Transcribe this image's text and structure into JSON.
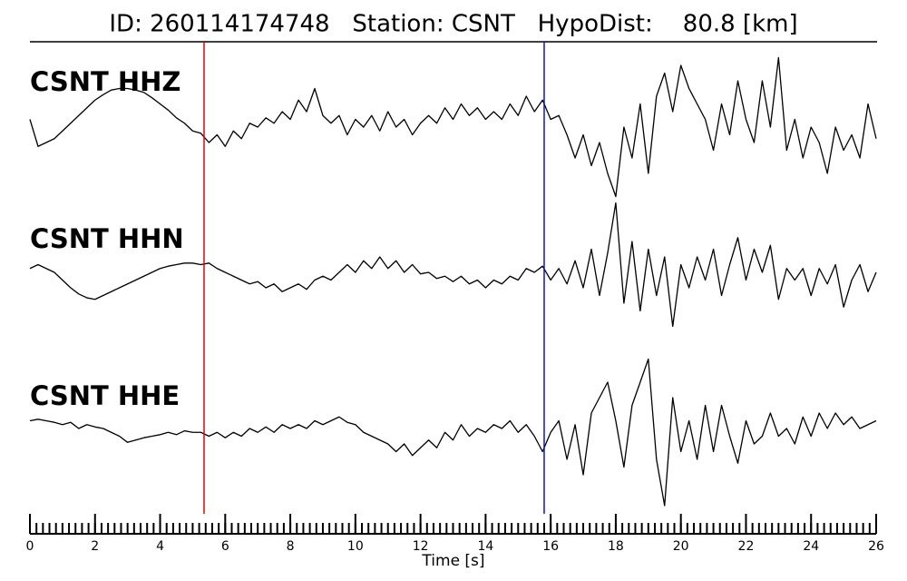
{
  "chart_data": {
    "type": "seismogram",
    "title": "ID: 260114174748   Station: CSNT   HypoDist:    80.8 [km]",
    "xlabel": "Time [s]",
    "xlim": [
      0,
      26
    ],
    "xticks": [
      0,
      2,
      4,
      6,
      8,
      10,
      12,
      14,
      16,
      18,
      20,
      22,
      24,
      26
    ],
    "xminor_step": 0.2,
    "ylim": [
      -1,
      1
    ],
    "label_color": "#4a9a0a",
    "picks": [
      {
        "x": 5.35,
        "color": "#e8000b"
      },
      {
        "x": 15.8,
        "color": "#1010d0"
      }
    ],
    "x": [
      0,
      0.25,
      0.5,
      0.75,
      1,
      1.25,
      1.5,
      1.75,
      2,
      2.25,
      2.5,
      2.75,
      3,
      3.25,
      3.5,
      3.75,
      4,
      4.25,
      4.5,
      4.75,
      5,
      5.25,
      5.5,
      5.75,
      6,
      6.25,
      6.5,
      6.75,
      7,
      7.25,
      7.5,
      7.75,
      8,
      8.25,
      8.5,
      8.75,
      9,
      9.25,
      9.5,
      9.75,
      10,
      10.25,
      10.5,
      10.75,
      11,
      11.25,
      11.5,
      11.75,
      12,
      12.25,
      12.5,
      12.75,
      13,
      13.25,
      13.5,
      13.75,
      14,
      14.25,
      14.5,
      14.75,
      15,
      15.25,
      15.5,
      15.75,
      16,
      16.25,
      16.5,
      16.75,
      17,
      17.25,
      17.5,
      17.75,
      18,
      18.25,
      18.5,
      18.75,
      19,
      19.25,
      19.5,
      19.75,
      20,
      20.25,
      20.5,
      20.75,
      21,
      21.25,
      21.5,
      21.75,
      22,
      22.25,
      22.5,
      22.75,
      23,
      23.25,
      23.5,
      23.75,
      24,
      24.25,
      24.5,
      24.75,
      25,
      25.25,
      25.5,
      25.75,
      26
    ],
    "series": [
      {
        "name": "CSNT HHZ",
        "color": "#000000",
        "values": [
          0.1,
          -0.25,
          -0.2,
          -0.15,
          -0.05,
          0.05,
          0.15,
          0.25,
          0.35,
          0.42,
          0.48,
          0.5,
          0.5,
          0.48,
          0.45,
          0.38,
          0.3,
          0.22,
          0.12,
          0.05,
          -0.05,
          -0.08,
          -0.2,
          -0.1,
          -0.25,
          -0.05,
          -0.15,
          0.05,
          0,
          0.12,
          0.05,
          0.2,
          0.1,
          0.35,
          0.2,
          0.5,
          0.15,
          0.05,
          0.15,
          -0.1,
          0.1,
          0,
          0.15,
          -0.05,
          0.2,
          0,
          0.1,
          -0.1,
          0.05,
          0.15,
          0.05,
          0.25,
          0.1,
          0.3,
          0.15,
          0.25,
          0.1,
          0.2,
          0.1,
          0.3,
          0.15,
          0.4,
          0.2,
          0.35,
          0.1,
          0.15,
          -0.1,
          -0.4,
          -0.1,
          -0.5,
          -0.2,
          -0.6,
          -0.9,
          0,
          -0.4,
          0.3,
          -0.6,
          0.4,
          0.7,
          0.2,
          0.8,
          0.5,
          0.3,
          0.1,
          -0.3,
          0.3,
          -0.1,
          0.6,
          0.1,
          -0.2,
          0.6,
          0,
          0.9,
          -0.3,
          0.1,
          -0.4,
          0,
          -0.2,
          -0.6,
          0,
          -0.3,
          -0.1,
          -0.4,
          0.3,
          -0.15
        ]
      },
      {
        "name": "CSNT HHN",
        "color": "#000000",
        "values": [
          0.05,
          0.1,
          0.05,
          0,
          -0.1,
          -0.2,
          -0.28,
          -0.33,
          -0.35,
          -0.3,
          -0.25,
          -0.2,
          -0.15,
          -0.1,
          -0.05,
          0,
          0.05,
          0.08,
          0.1,
          0.12,
          0.12,
          0.1,
          0.12,
          0.05,
          0,
          -0.05,
          -0.1,
          -0.15,
          -0.12,
          -0.2,
          -0.15,
          -0.25,
          -0.2,
          -0.15,
          -0.22,
          -0.1,
          -0.05,
          -0.1,
          0,
          0.1,
          0,
          0.15,
          0.05,
          0.2,
          0.05,
          0.15,
          0,
          0.1,
          -0.02,
          0,
          -0.08,
          -0.05,
          -0.12,
          -0.05,
          -0.15,
          -0.1,
          -0.2,
          -0.1,
          -0.15,
          -0.05,
          -0.1,
          0.05,
          0,
          0.08,
          -0.1,
          0.05,
          -0.15,
          0.15,
          -0.2,
          0.3,
          -0.3,
          0.25,
          0.9,
          -0.4,
          0.4,
          -0.5,
          0.3,
          -0.3,
          0.2,
          -0.7,
          0.1,
          -0.2,
          0.2,
          -0.1,
          0.3,
          -0.3,
          0.1,
          0.45,
          -0.1,
          0.3,
          0,
          0.35,
          -0.35,
          0.05,
          -0.1,
          0.05,
          -0.3,
          0.05,
          -0.15,
          0.1,
          -0.45,
          -0.1,
          0.1,
          -0.25,
          0
        ]
      },
      {
        "name": "CSNT HHE",
        "color": "#000000",
        "values": [
          0.1,
          0.12,
          0.1,
          0.08,
          0.05,
          0.08,
          0,
          0.05,
          0.02,
          0,
          -0.05,
          -0.1,
          -0.18,
          -0.15,
          -0.12,
          -0.1,
          -0.08,
          -0.05,
          -0.08,
          -0.03,
          -0.05,
          -0.05,
          -0.1,
          -0.05,
          -0.12,
          -0.05,
          -0.1,
          0,
          -0.05,
          0.02,
          -0.05,
          0.05,
          0,
          0.05,
          0,
          0.1,
          0.05,
          0.1,
          0.15,
          0.08,
          0.05,
          -0.05,
          -0.1,
          -0.15,
          -0.2,
          -0.3,
          -0.2,
          -0.35,
          -0.25,
          -0.15,
          -0.25,
          -0.05,
          -0.15,
          0.05,
          -0.1,
          0,
          -0.05,
          0.05,
          0,
          0.1,
          -0.05,
          0.05,
          -0.1,
          -0.3,
          -0.05,
          0.1,
          -0.4,
          0.05,
          -0.6,
          0.2,
          0.4,
          0.6,
          0.1,
          -0.5,
          0.3,
          0.6,
          0.9,
          -0.4,
          -1,
          0.4,
          -0.3,
          0.1,
          -0.4,
          0.3,
          -0.3,
          0.3,
          -0.1,
          -0.45,
          0.1,
          -0.2,
          -0.1,
          0.2,
          -0.1,
          0,
          -0.2,
          0.15,
          -0.1,
          0.2,
          0,
          0.2,
          0.05,
          0.15,
          0,
          0.05,
          0.1
        ]
      }
    ]
  }
}
